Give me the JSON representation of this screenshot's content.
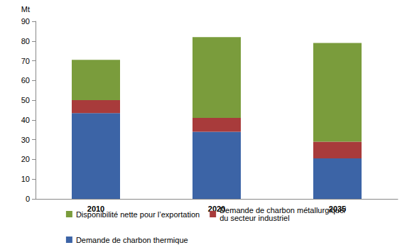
{
  "chart_data": {
    "type": "bar",
    "stacked": true,
    "y_label": "Mt",
    "categories": [
      "2010",
      "2020",
      "2035"
    ],
    "series": [
      {
        "name": "Demande de charbon thermique",
        "color": "#3c64a6",
        "values": [
          43.5,
          34,
          20.5
        ]
      },
      {
        "name": "Demande de charbon métallurgique/\ndu secteur industriel",
        "color": "#a83b3b",
        "values": [
          6.5,
          7,
          8.5
        ]
      },
      {
        "name": "Disponibilité nette pour l’exportation",
        "color": "#7a9c3c",
        "values": [
          20.5,
          41,
          50
        ]
      }
    ],
    "legend_order": [
      "Disponibilité nette pour l’exportation",
      "Demande de charbon métallurgique/\ndu secteur industriel",
      "Demande de charbon thermique"
    ],
    "ylim": [
      0,
      90
    ],
    "yticks": [
      0,
      10,
      20,
      30,
      40,
      50,
      60,
      70,
      80,
      90
    ],
    "grid": false,
    "legend": "bottom"
  }
}
